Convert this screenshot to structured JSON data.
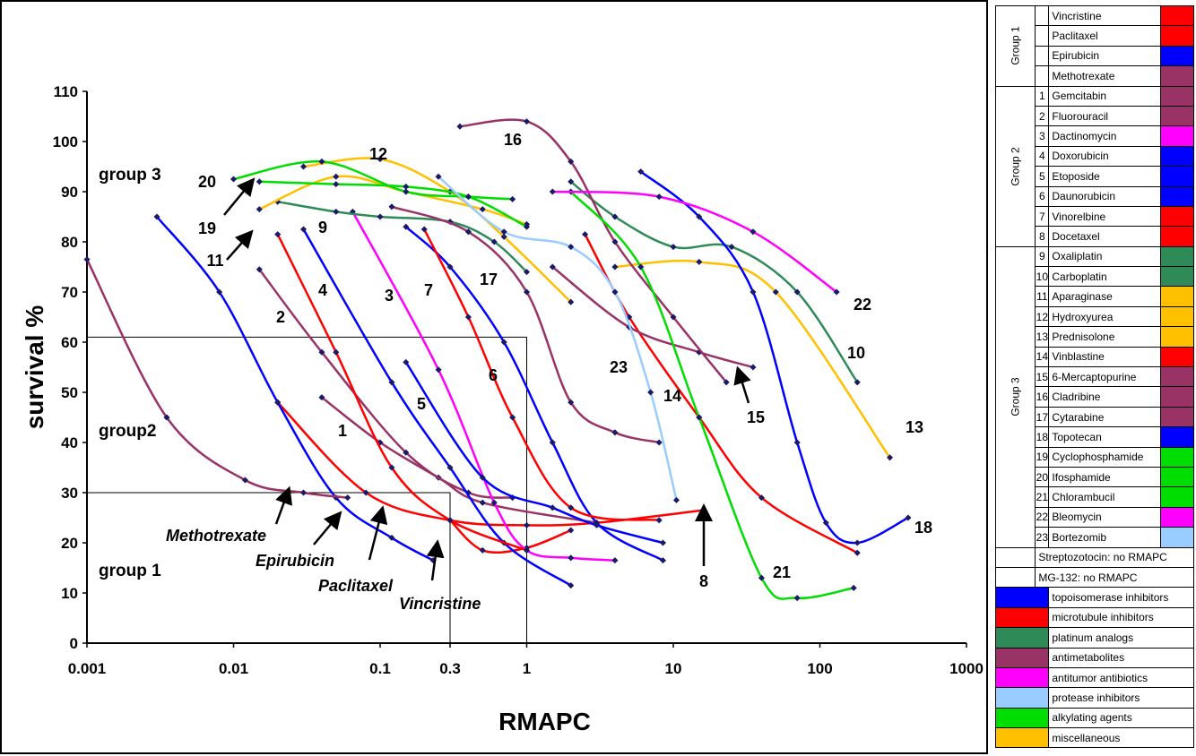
{
  "chart_data": {
    "type": "line",
    "xscale": "log",
    "xlim": [
      0.001,
      1000
    ],
    "ylim": [
      0,
      110
    ],
    "xlabel": "RMAPC",
    "ylabel": "survival %",
    "x_ticks": [
      "0.001",
      "0.01",
      "0.1",
      "0.3",
      "1",
      "10",
      "100",
      "1000"
    ],
    "y_ticks": [
      "0",
      "10",
      "20",
      "30",
      "40",
      "50",
      "60",
      "70",
      "80",
      "90",
      "100",
      "110"
    ],
    "regions": [
      {
        "label": "group 1",
        "x_max": 0.3,
        "y_max": 30
      },
      {
        "label": "group2",
        "x_max": 1,
        "y_max": 61
      },
      {
        "label": "group 3"
      }
    ],
    "arrow_labels": [
      "Methotrexate",
      "Epirubicin",
      "Paclitaxel",
      "Vincristine"
    ],
    "series": [
      {
        "name": "Vincristine",
        "label": "",
        "color": "#ff0000",
        "x": [
          0.3,
          0.5,
          1.0,
          2.0
        ],
        "y": [
          24.5,
          18.5,
          19.0,
          22.5
        ]
      },
      {
        "name": "Paclitaxel",
        "label": "",
        "color": "#ff0000",
        "x": [
          0.02,
          0.08,
          0.3,
          1.0,
          3.0,
          16.0
        ],
        "y": [
          48,
          30,
          24.5,
          23.5,
          24,
          26.5
        ]
      },
      {
        "name": "Epirubicin",
        "label": "",
        "color": "#0000ff",
        "x": [
          0.003,
          0.008,
          0.02,
          0.05,
          0.12,
          0.23
        ],
        "y": [
          85,
          70,
          48,
          29,
          21,
          16.5
        ]
      },
      {
        "name": "Methotrexate",
        "label": "",
        "color": "#993366",
        "x": [
          0.001,
          0.0035,
          0.012,
          0.03,
          0.06
        ],
        "y": [
          76.5,
          45,
          32.5,
          30,
          29
        ]
      },
      {
        "name": "Gemcitabin",
        "label": "1",
        "color": "#993366",
        "x": [
          0.04,
          0.1,
          0.25,
          0.5,
          3.0
        ],
        "y": [
          49,
          40,
          33,
          28,
          24
        ]
      },
      {
        "name": "Fluorouracil",
        "label": "2",
        "color": "#993366",
        "x": [
          0.015,
          0.04,
          0.15,
          0.4,
          0.8
        ],
        "y": [
          74.5,
          58,
          38,
          30,
          29
        ]
      },
      {
        "name": "Dactinomycin",
        "label": "3",
        "color": "#ff00ff",
        "x": [
          0.065,
          0.25,
          0.6,
          1.0,
          2.0,
          4.0
        ],
        "y": [
          86,
          54.5,
          28,
          18.5,
          17,
          16.5
        ]
      },
      {
        "name": "Doxorubicin",
        "label": "4",
        "color": "#0000ff",
        "x": [
          0.03,
          0.12,
          0.3,
          0.7,
          2.0
        ],
        "y": [
          82.5,
          52,
          35,
          20,
          11.5
        ]
      },
      {
        "name": "Etoposide",
        "label": "5",
        "color": "#0000ff",
        "x": [
          0.15,
          0.5,
          1.5,
          3.0,
          8.5
        ],
        "y": [
          56,
          33,
          27,
          23.5,
          20
        ]
      },
      {
        "name": "Daunorubicin",
        "label": "6",
        "color": "#0000ff",
        "x": [
          0.15,
          0.3,
          0.7,
          1.5,
          3.0,
          8.5
        ],
        "y": [
          83,
          75,
          60,
          40,
          24,
          16.5
        ]
      },
      {
        "name": "Vinorelbine",
        "label": "7",
        "color": "#ff0000",
        "x": [
          0.2,
          0.4,
          0.8,
          2.0,
          8.0
        ],
        "y": [
          82.5,
          65,
          45,
          27,
          24.5
        ]
      },
      {
        "name": "Docetaxel",
        "label": "8",
        "color": "#ff0000",
        "x": [
          0.02,
          0.05,
          0.12,
          0.3,
          1.0
        ],
        "y": [
          81.5,
          58,
          35,
          24.5,
          18.5
        ]
      },
      {
        "name": "Oxaliplatin",
        "label": "9",
        "color": "#2e8b57",
        "x": [
          0.02,
          0.05,
          0.1,
          0.3,
          0.6,
          1.0
        ],
        "y": [
          88,
          86,
          85,
          84,
          80,
          74
        ]
      },
      {
        "name": "Carboplatin",
        "label": "10",
        "color": "#2e8b57",
        "x": [
          2.0,
          4.0,
          10.0,
          25.0,
          70.0,
          180.0
        ],
        "y": [
          92,
          85,
          79,
          79,
          70,
          52
        ]
      },
      {
        "name": "Aparaginase",
        "label": "11",
        "color": "#ffc000",
        "x": [
          0.015,
          0.05,
          0.15,
          0.5,
          1.0
        ],
        "y": [
          86.5,
          93,
          90,
          86.5,
          83.5
        ]
      },
      {
        "name": "Hydroxyurea",
        "label": "12",
        "color": "#ffc000",
        "x": [
          0.03,
          0.1,
          0.3,
          0.7,
          2.0
        ],
        "y": [
          95,
          96.5,
          90,
          81,
          68
        ]
      },
      {
        "name": "Prednisolone",
        "label": "13",
        "color": "#ffc000",
        "x": [
          4.0,
          15.0,
          50.0,
          300.0
        ],
        "y": [
          75,
          76,
          70,
          37
        ]
      },
      {
        "name": "Vinblastine",
        "label": "14",
        "color": "#ff0000",
        "x": [
          2.5,
          5.0,
          15.0,
          40.0,
          180.0
        ],
        "y": [
          81.5,
          65,
          45,
          29,
          18
        ]
      },
      {
        "name": "6-Mercaptopurine",
        "label": "15",
        "color": "#993366",
        "x": [
          1.5,
          5.0,
          15.0,
          35.0
        ],
        "y": [
          75,
          63,
          58,
          55
        ]
      },
      {
        "name": "Cladribine",
        "label": "16",
        "color": "#993366",
        "x": [
          0.35,
          1.0,
          2.0,
          4.0,
          10.0,
          23.0
        ],
        "y": [
          103,
          104,
          96,
          80,
          65,
          52
        ]
      },
      {
        "name": "Cytarabine",
        "label": "17",
        "color": "#993366",
        "x": [
          0.12,
          0.4,
          1.0,
          2.0,
          4.0,
          8.0
        ],
        "y": [
          87,
          82,
          70,
          48,
          42,
          40
        ]
      },
      {
        "name": "Topotecan",
        "label": "18",
        "color": "#0000ff",
        "x": [
          6.0,
          15.0,
          35.0,
          70.0,
          110.0,
          180.0,
          400.0
        ],
        "y": [
          94,
          85,
          70,
          40,
          24,
          20,
          25
        ]
      },
      {
        "name": "Cyclophosphamide",
        "label": "19",
        "color": "#00dd00",
        "x": [
          0.015,
          0.05,
          0.15,
          0.4,
          1.0
        ],
        "y": [
          92,
          91.5,
          91,
          89,
          83
        ]
      },
      {
        "name": "Ifosphamide",
        "label": "20",
        "color": "#00dd00",
        "x": [
          0.01,
          0.04,
          0.15,
          0.4,
          0.8
        ],
        "y": [
          92.5,
          96,
          90,
          89,
          88.5
        ]
      },
      {
        "name": "Chlorambucil",
        "label": "21",
        "color": "#00dd00",
        "x": [
          2.0,
          6.0,
          15.0,
          40.0,
          70.0,
          170.0
        ],
        "y": [
          90,
          75,
          45,
          13,
          9,
          11
        ]
      },
      {
        "name": "Bleomycin",
        "label": "22",
        "color": "#ff00ff",
        "x": [
          1.5,
          8.0,
          35.0,
          130.0
        ],
        "y": [
          90,
          89,
          82,
          70
        ]
      },
      {
        "name": "Bortezomib",
        "label": "23",
        "color": "#99ccff",
        "x": [
          0.25,
          0.7,
          2.0,
          4.0,
          7.0,
          10.5
        ],
        "y": [
          93,
          82,
          79,
          70,
          50,
          28.5
        ]
      }
    ]
  },
  "legend": {
    "drug_groups": [
      {
        "group": "Group 1",
        "items": [
          {
            "num": "",
            "name": "Vincristine",
            "color": "#ff0000"
          },
          {
            "num": "",
            "name": "Paclitaxel",
            "color": "#ff0000"
          },
          {
            "num": "",
            "name": "Epirubicin",
            "color": "#0000ff"
          },
          {
            "num": "",
            "name": "Methotrexate",
            "color": "#993366"
          }
        ]
      },
      {
        "group": "Group 2",
        "items": [
          {
            "num": "1",
            "name": "Gemcitabin",
            "color": "#993366"
          },
          {
            "num": "2",
            "name": "Fluorouracil",
            "color": "#993366"
          },
          {
            "num": "3",
            "name": "Dactinomycin",
            "color": "#ff00ff"
          },
          {
            "num": "4",
            "name": "Doxorubicin",
            "color": "#0000ff"
          },
          {
            "num": "5",
            "name": "Etoposide",
            "color": "#0000ff"
          },
          {
            "num": "6",
            "name": "Daunorubicin",
            "color": "#0000ff"
          },
          {
            "num": "7",
            "name": "Vinorelbine",
            "color": "#ff0000"
          },
          {
            "num": "8",
            "name": "Docetaxel",
            "color": "#ff0000"
          }
        ]
      },
      {
        "group": "Group 3",
        "items": [
          {
            "num": "9",
            "name": "Oxaliplatin",
            "color": "#2e8b57"
          },
          {
            "num": "10",
            "name": "Carboplatin",
            "color": "#2e8b57"
          },
          {
            "num": "11",
            "name": "Aparaginase",
            "color": "#ffc000"
          },
          {
            "num": "12",
            "name": "Hydroxyurea",
            "color": "#ffc000"
          },
          {
            "num": "13",
            "name": "Prednisolone",
            "color": "#ffc000"
          },
          {
            "num": "14",
            "name": "Vinblastine",
            "color": "#ff0000"
          },
          {
            "num": "15",
            "name": "6-Mercaptopurine",
            "color": "#993366"
          },
          {
            "num": "16",
            "name": "Cladribine",
            "color": "#993366"
          },
          {
            "num": "17",
            "name": "Cytarabine",
            "color": "#993366"
          },
          {
            "num": "18",
            "name": "Topotecan",
            "color": "#0000ff"
          },
          {
            "num": "19",
            "name": "Cyclophosphamide",
            "color": "#00dd00"
          },
          {
            "num": "20",
            "name": "Ifosphamide",
            "color": "#00dd00"
          },
          {
            "num": "21",
            "name": "Chlorambucil",
            "color": "#00dd00"
          },
          {
            "num": "22",
            "name": "Bleomycin",
            "color": "#ff00ff"
          },
          {
            "num": "23",
            "name": "Bortezomib",
            "color": "#99ccff"
          }
        ]
      }
    ],
    "notes": [
      "Streptozotocin: no RMAPC",
      "MG-132: no RMAPC"
    ],
    "classes": [
      {
        "name": "topoisomerase inhibitors",
        "color": "#0000ff"
      },
      {
        "name": "microtubule inhibitors",
        "color": "#ff0000"
      },
      {
        "name": "platinum analogs",
        "color": "#2e8b57"
      },
      {
        "name": "antimetabolites",
        "color": "#993366"
      },
      {
        "name": "antitumor antibiotics",
        "color": "#ff00ff"
      },
      {
        "name": "protease inhibitors",
        "color": "#99ccff"
      },
      {
        "name": "alkylating agents",
        "color": "#00dd00"
      },
      {
        "name": "miscellaneous",
        "color": "#ffc000"
      }
    ]
  }
}
